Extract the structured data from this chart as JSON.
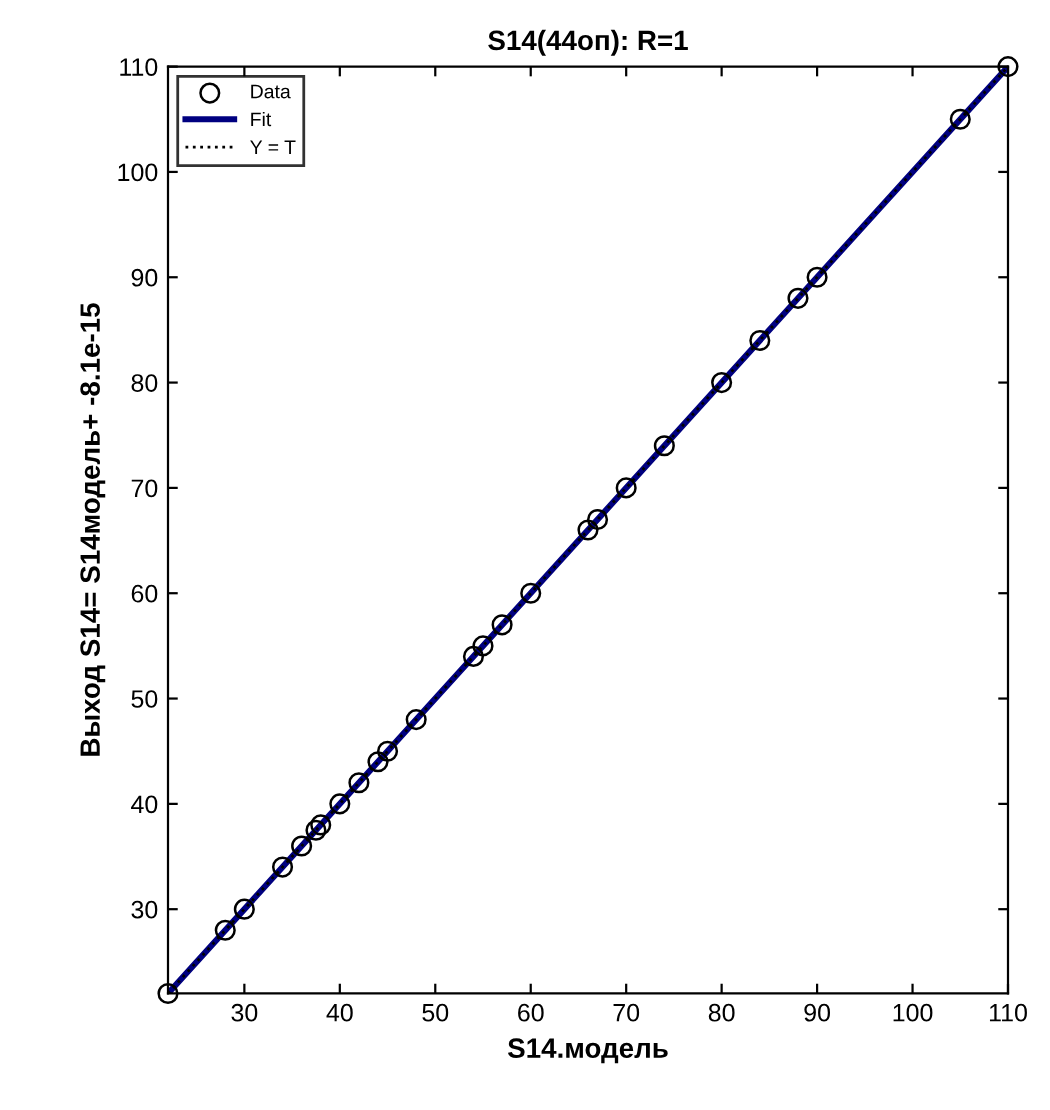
{
  "chart_data": {
    "type": "scatter",
    "title": "S14(44оп): R=1",
    "xlabel": "S14.модель",
    "ylabel": "Выход S14= S14модель+ -8.1e-15",
    "series": [
      {
        "name": "Data",
        "marker": "circle",
        "color": "#000000",
        "x": [
          22,
          28,
          30,
          34,
          36,
          37.5,
          38,
          40,
          42,
          44,
          45,
          48,
          54,
          55,
          57,
          60,
          66,
          67,
          70,
          74,
          80,
          84,
          88,
          90,
          105,
          110
        ],
        "values": [
          22,
          28,
          30,
          34,
          36,
          37.5,
          38,
          40,
          42,
          44,
          45,
          48,
          54,
          55,
          57,
          60,
          66,
          67,
          70,
          74,
          80,
          84,
          88,
          90,
          105,
          110
        ]
      },
      {
        "name": "Fit",
        "type": "line",
        "line_style": "solid",
        "color": "#000080",
        "x": [
          22,
          110
        ],
        "values": [
          22,
          110
        ]
      },
      {
        "name": "Y = T",
        "type": "line",
        "line_style": "dotted",
        "color": "#000000",
        "x": [
          22,
          110
        ],
        "values": [
          22,
          110
        ]
      }
    ],
    "xlim": [
      22,
      110
    ],
    "ylim": [
      22,
      110
    ],
    "xticks": [
      30,
      40,
      50,
      60,
      70,
      80,
      90,
      100,
      110
    ],
    "yticks": [
      30,
      40,
      50,
      60,
      70,
      80,
      90,
      100,
      110
    ],
    "grid": false,
    "legend": "top left"
  }
}
